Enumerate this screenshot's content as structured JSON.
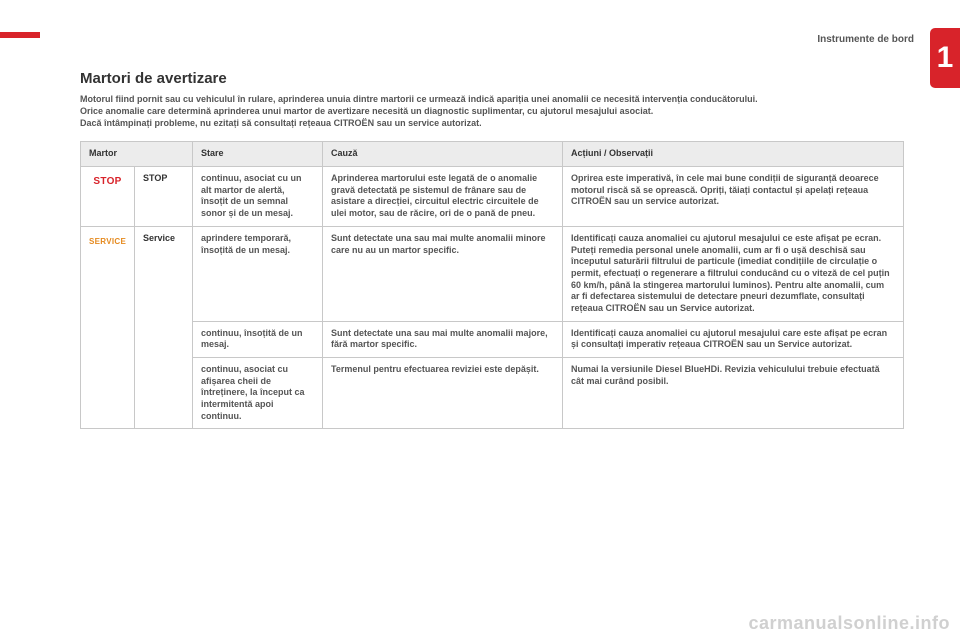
{
  "page": {
    "chapter_number": "1",
    "header_right": "Instrumente de bord",
    "title": "Martori de avertizare",
    "intro_p1": "Motorul fiind pornit sau cu vehiculul în rulare, aprinderea unuia dintre martorii ce urmează indică apariția unei anomalii ce necesită intervenția conducătorului.",
    "intro_p2": "Orice anomalie care determină aprinderea unui martor de avertizare necesită un diagnostic suplimentar, cu ajutorul mesajului asociat.",
    "intro_p3": "Dacă întâmpinați probleme, nu ezitați să consultați rețeaua CITROËN sau un service autorizat.",
    "watermark": "carmanualsonline.info",
    "page_number": ""
  },
  "table": {
    "columns": {
      "martor": "Martor",
      "stare": "Stare",
      "cauza": "Cauză",
      "actiuni": "Acțiuni / Observații"
    },
    "stop": {
      "indicator": "STOP",
      "name": "STOP",
      "stare": "continuu, asociat cu un alt martor de alertă, însoțit de un semnal sonor și de un mesaj.",
      "cauza": "Aprinderea martorului este legată de o anomalie gravă detectată pe sistemul de frânare sau de asistare a direcției, circuitul electric circuitele de ulei motor, sau de răcire, ori de o pană de pneu.",
      "actiuni": "Oprirea este imperativă, în cele mai bune condiții de siguranță deoarece motorul riscă să se oprească. Opriți, tăiați contactul și apelați rețeaua CITROËN sau un service autorizat."
    },
    "service": {
      "indicator": "SERVICE",
      "name": "Service",
      "r1_stare": "aprindere temporară, însoțită de un mesaj.",
      "r1_cauza": "Sunt detectate una sau mai multe anomalii minore care nu au un martor specific.",
      "r1_actiuni": "Identificați cauza anomaliei cu ajutorul mesajului ce este afișat pe ecran. Puteți remedia personal unele anomalii, cum ar fi o ușă deschisă sau începutul saturării filtrului de particule (imediat condițiile de circulație o permit, efectuați o regenerare a filtrului conducând cu o viteză de cel puțin 60 km/h, până la stingerea martorului luminos). Pentru alte anomalii, cum ar fi defectarea sistemului de detectare pneuri dezumflate, consultați rețeaua CITROËN sau un Service autorizat.",
      "r2_stare": "continuu, însoțită de un mesaj.",
      "r2_cauza": "Sunt detectate una sau mai multe anomalii majore, fără martor specific.",
      "r2_actiuni": "Identificați cauza anomaliei cu ajutorul mesajului care este afișat pe ecran și consultați imperativ rețeaua CITROËN sau un Service autorizat.",
      "r3_stare": "continuu, asociat cu afișarea cheii de întreținere, la început ca intermitentă apoi continuu.",
      "r3_cauza": "Termenul pentru efectuarea reviziei este depășit.",
      "r3_actiuni": "Numai la versiunile Diesel BlueHDi. Revizia vehiculului trebuie efectuată cât mai curând posibil."
    }
  },
  "style": {
    "red": "#d8232a",
    "orange": "#e58a1f",
    "header_bg": "#ececec",
    "border": "#c8c8c8"
  }
}
